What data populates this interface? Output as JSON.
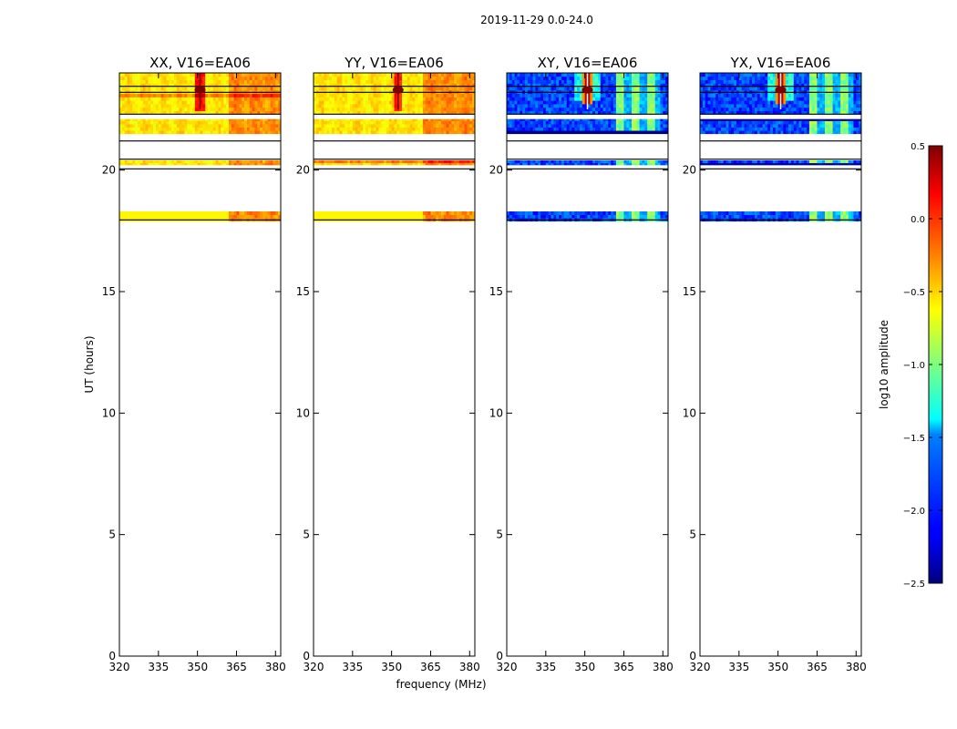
{
  "chart_data": {
    "type": "heatmap",
    "suptitle": "2019-11-29 0.0-24.0",
    "xlabel": "frequency (MHz)",
    "ylabel": "UT (hours)",
    "xlim": [
      320,
      382
    ],
    "ylim": [
      0,
      24
    ],
    "xticks": [
      "320",
      "335",
      "350",
      "365",
      "380"
    ],
    "yticks": [
      "0",
      "5",
      "10",
      "15",
      "20"
    ],
    "panels": [
      {
        "title": "XX, V16=EA06",
        "kind": "parallel",
        "hot_freq": 351,
        "bright_band_freq": [
          362,
          382
        ]
      },
      {
        "title": "YY, V16=EA06",
        "kind": "parallel",
        "hot_freq": 352.5,
        "bright_band_freq": [
          362,
          382
        ]
      },
      {
        "title": "XY, V16=EA06",
        "kind": "cross",
        "hot_freq": 351,
        "bright_band_freq": [
          362,
          379
        ]
      },
      {
        "title": "YX, V16=EA06",
        "kind": "cross",
        "hot_freq": 351,
        "bright_band_freq": [
          362,
          379
        ]
      }
    ],
    "data_rows_ut": [
      [
        17.9,
        18.3
      ],
      [
        20.2,
        20.4
      ],
      [
        21.5,
        22.3
      ],
      [
        22.3,
        24.0
      ]
    ],
    "blank_gaps_ut": [
      [
        20.05,
        20.2
      ],
      [
        20.4,
        20.55
      ],
      [
        22.1,
        22.3
      ]
    ],
    "colorbar": {
      "label": "log10 amplitude",
      "min": -2.5,
      "max": 0.5,
      "ticks": [
        "0.5",
        "0.0",
        "−0.5",
        "−1.0",
        "−1.5",
        "−2.0",
        "−2.5"
      ],
      "tick_values": [
        0.5,
        0.0,
        -0.5,
        -1.0,
        -1.5,
        -2.0,
        -2.5
      ]
    }
  }
}
